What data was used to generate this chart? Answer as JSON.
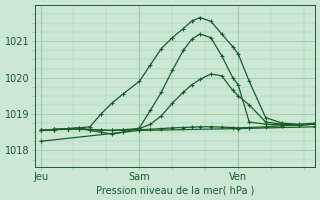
{
  "xlabel": "Pression niveau de la mer( hPa )",
  "bg_color": "#cce8d4",
  "grid_color": "#99ccaa",
  "line_color": "#1a5c28",
  "yticks": [
    1018,
    1019,
    1020,
    1021
  ],
  "ylim": [
    1017.55,
    1022.0
  ],
  "xtick_labels": [
    "Jeu",
    "Sam",
    "Ven"
  ],
  "xtick_positions": [
    0.0,
    0.36,
    0.72
  ],
  "xlim": [
    -0.02,
    1.0
  ],
  "series": [
    [
      0.0,
      1018.55
    ],
    [
      0.0,
      1018.55
    ],
    [
      0.0,
      1018.25
    ],
    [
      0.0,
      1018.55
    ],
    [
      0.0,
      1018.55
    ]
  ],
  "curves": [
    {
      "x": [
        0.0,
        0.05,
        0.1,
        0.14,
        0.18,
        0.22,
        0.26,
        0.3,
        0.36,
        0.4,
        0.44,
        0.48,
        0.52,
        0.55,
        0.58,
        0.62,
        0.66,
        0.7,
        0.72,
        0.76,
        0.82,
        0.88,
        0.94,
        1.0
      ],
      "y": [
        1018.55,
        1018.58,
        1018.6,
        1018.62,
        1018.65,
        1019.0,
        1019.3,
        1019.55,
        1019.9,
        1020.35,
        1020.8,
        1021.1,
        1021.35,
        1021.55,
        1021.65,
        1021.55,
        1021.2,
        1020.85,
        1020.65,
        1019.9,
        1018.9,
        1018.75,
        1018.72,
        1018.75
      ]
    },
    {
      "x": [
        0.0,
        0.05,
        0.1,
        0.14,
        0.18,
        0.22,
        0.26,
        0.3,
        0.36,
        0.4,
        0.44,
        0.48,
        0.52,
        0.55,
        0.58,
        0.62,
        0.66,
        0.7,
        0.72,
        0.76,
        0.82,
        0.88,
        0.94,
        1.0
      ],
      "y": [
        1018.55,
        1018.58,
        1018.6,
        1018.62,
        1018.55,
        1018.5,
        1018.45,
        1018.5,
        1018.62,
        1019.1,
        1019.6,
        1020.2,
        1020.75,
        1021.05,
        1021.2,
        1021.1,
        1020.6,
        1020.0,
        1019.8,
        1018.78,
        1018.72,
        1018.7,
        1018.7,
        1018.72
      ]
    },
    {
      "x": [
        0.0,
        0.05,
        0.1,
        0.14,
        0.18,
        0.22,
        0.26,
        0.3,
        0.36,
        0.4,
        0.44,
        0.48,
        0.52,
        0.55,
        0.58,
        0.62,
        0.66,
        0.7,
        0.72,
        0.76,
        0.82,
        0.88,
        0.94,
        1.0
      ],
      "y": [
        1018.55,
        1018.57,
        1018.59,
        1018.6,
        1018.58,
        1018.56,
        1018.55,
        1018.57,
        1018.6,
        1018.72,
        1018.95,
        1019.3,
        1019.6,
        1019.8,
        1019.95,
        1020.1,
        1020.05,
        1019.65,
        1019.5,
        1019.25,
        1018.78,
        1018.72,
        1018.7,
        1018.72
      ]
    },
    {
      "x": [
        0.0,
        0.05,
        0.1,
        0.14,
        0.18,
        0.22,
        0.26,
        0.3,
        0.36,
        0.4,
        0.44,
        0.48,
        0.52,
        0.55,
        0.58,
        0.62,
        0.66,
        0.7,
        0.72,
        0.76,
        0.82,
        0.88,
        0.94,
        1.0
      ],
      "y": [
        1018.55,
        1018.57,
        1018.58,
        1018.58,
        1018.57,
        1018.56,
        1018.55,
        1018.56,
        1018.57,
        1018.58,
        1018.6,
        1018.62,
        1018.63,
        1018.64,
        1018.65,
        1018.65,
        1018.64,
        1018.63,
        1018.62,
        1018.63,
        1018.65,
        1018.68,
        1018.7,
        1018.72
      ]
    },
    {
      "x": [
        0.0,
        0.36,
        0.72,
        1.0
      ],
      "y": [
        1018.25,
        1018.55,
        1018.6,
        1018.65
      ]
    }
  ]
}
